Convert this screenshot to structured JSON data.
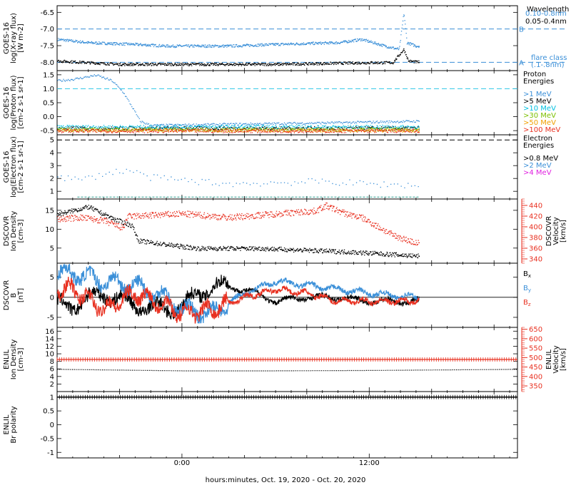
{
  "figure": {
    "xlabel": "hours:minutes, Oct. 19, 2020 - Oct. 20, 2020",
    "x_ticks": [
      "0:00",
      "12:00"
    ],
    "x_range_hours": [
      -8,
      21.5
    ],
    "data_end_hour": 15.2
  },
  "chart_data": [
    {
      "type": "line",
      "ylabel": [
        "GOES-16",
        "log(X-ray flux)",
        "[W m-2]"
      ],
      "yticks": [
        -6.5,
        -7.0,
        -7.5,
        -8.0
      ],
      "ylim": [
        -8.25,
        -6.3
      ],
      "legend_title": "Wavelength",
      "series": [
        {
          "name": "0.10-0.8nm",
          "color": "#3a8fd8",
          "baseline": -7.45,
          "points": [
            [
              -8,
              -7.3
            ],
            [
              -6,
              -7.4
            ],
            [
              -3,
              -7.45
            ],
            [
              -1,
              -7.5
            ],
            [
              3,
              -7.5
            ],
            [
              6,
              -7.45
            ],
            [
              10,
              -7.4
            ],
            [
              11.5,
              -7.3
            ],
            [
              13,
              -7.5
            ],
            [
              13.9,
              -7.6
            ],
            [
              14.2,
              -6.5
            ],
            [
              14.4,
              -7.4
            ],
            [
              15,
              -7.5
            ]
          ]
        },
        {
          "name": "0.05-0.4nm",
          "color": "#000000",
          "baseline": -8.05,
          "points": [
            [
              -8,
              -7.95
            ],
            [
              -4,
              -8.05
            ],
            [
              0,
              -8.05
            ],
            [
              6,
              -8.05
            ],
            [
              12,
              -8.0
            ],
            [
              13.5,
              -8.0
            ],
            [
              14.2,
              -7.6
            ],
            [
              14.5,
              -7.95
            ],
            [
              15,
              -7.98
            ]
          ]
        }
      ],
      "thresholds": [
        {
          "value": -7.0,
          "label": "B",
          "color": "#3a8fd8"
        },
        {
          "value": -8.0,
          "label": "A",
          "color": "#3a8fd8"
        }
      ],
      "annotations": [
        "flare class",
        "(.1-.8nm)"
      ]
    },
    {
      "type": "scatter",
      "ylabel": [
        "GOES-16",
        "log(Proton flux)",
        "[cm-2 s-1 sr-1]"
      ],
      "yticks": [
        1.5,
        1.0,
        0.5,
        0.0,
        -0.5
      ],
      "ylim": [
        -0.65,
        1.65
      ],
      "legend_title": "Proton Energies",
      "series": [
        {
          "name": ">1 MeV",
          "color": "#3a8fd8",
          "points": [
            [
              -8,
              1.3
            ],
            [
              -7,
              1.35
            ],
            [
              -5.5,
              1.5
            ],
            [
              -4.5,
              1.3
            ],
            [
              -3.8,
              0.9
            ],
            [
              -3.2,
              0.35
            ],
            [
              -2.7,
              -0.15
            ],
            [
              -2,
              -0.3
            ],
            [
              4,
              -0.25
            ],
            [
              10,
              -0.2
            ],
            [
              15,
              -0.15
            ]
          ]
        },
        {
          "name": ">5 MeV",
          "color": "#000000",
          "baseline": -0.4
        },
        {
          "name": ">10 MeV",
          "color": "#00c0e0",
          "baseline": -0.35
        },
        {
          "name": ">30 MeV",
          "color": "#7cc000",
          "baseline": -0.45
        },
        {
          "name": ">50 MeV",
          "color": "#f0a000",
          "baseline": -0.48
        },
        {
          "name": ">100 MeV",
          "color": "#e83020",
          "baseline": -0.5
        }
      ],
      "thresholds": [
        {
          "value": 1.0,
          "color": "#2fc8e8"
        }
      ]
    },
    {
      "type": "scatter",
      "ylabel": [
        "GOES-16",
        "log(Electron flux)",
        "[cm-2 s-1 sr-1]"
      ],
      "yticks": [
        5,
        4,
        3,
        2,
        1
      ],
      "ylim": [
        0.4,
        5.4
      ],
      "legend_title": "Electron Energies",
      "series": [
        {
          "name": ">0.8 MeV",
          "color": "#000000",
          "points": []
        },
        {
          "name": ">2 MeV",
          "color": "#3a8fd8",
          "points": [
            [
              -7.6,
              2.1
            ],
            [
              -6.5,
              1.9
            ],
            [
              -5,
              2.4
            ],
            [
              -3.5,
              2.7
            ],
            [
              -2,
              2.1
            ],
            [
              0,
              1.9
            ],
            [
              3,
              1.6
            ],
            [
              6,
              1.7
            ],
            [
              9,
              1.8
            ],
            [
              12,
              1.6
            ],
            [
              15,
              1.5
            ]
          ]
        },
        {
          "name": ">4 MeV",
          "color": "#e020e0",
          "points": []
        }
      ],
      "floor": {
        "value": 0.55,
        "color": "#2a9d8f"
      },
      "thresholds": [
        {
          "value": 5.0,
          "color": "#000000"
        }
      ]
    },
    {
      "type": "scatter",
      "ylabel": [
        "DSCOVR",
        "Ion Density",
        "[cm-3]"
      ],
      "yticks": [
        15,
        10,
        5
      ],
      "ylim": [
        1,
        18
      ],
      "y2label": [
        "DSCOVR",
        "Velocity",
        "[km/s]"
      ],
      "y2ticks": [
        440,
        420,
        400,
        380,
        360,
        340
      ],
      "y2lim": [
        332,
        452
      ],
      "series": [
        {
          "name": "Ion Density",
          "color": "#000000",
          "axis": "left",
          "points": [
            [
              -8,
              14
            ],
            [
              -6,
              16
            ],
            [
              -4.5,
              13
            ],
            [
              -3.2,
              11
            ],
            [
              -2.8,
              7
            ],
            [
              -1,
              6
            ],
            [
              1,
              5
            ],
            [
              5,
              5
            ],
            [
              8,
              4.5
            ],
            [
              11,
              4
            ],
            [
              13,
              3.5
            ],
            [
              15,
              3
            ]
          ]
        },
        {
          "name": "Velocity",
          "color": "#e83020",
          "axis": "right",
          "points": [
            [
              -8,
              415
            ],
            [
              -6.5,
              418
            ],
            [
              -5,
              412
            ],
            [
              -3.8,
              398
            ],
            [
              -3.5,
              420
            ],
            [
              0,
              425
            ],
            [
              3,
              418
            ],
            [
              6,
              425
            ],
            [
              8.5,
              430
            ],
            [
              9.2,
              440
            ],
            [
              10.5,
              425
            ],
            [
              11.5,
              418
            ],
            [
              12.3,
              405
            ],
            [
              13.5,
              385
            ],
            [
              15,
              370
            ]
          ]
        }
      ]
    },
    {
      "type": "scatter",
      "ylabel": [
        "DSCOVR",
        "B",
        "[nT]"
      ],
      "yticks": [
        5,
        0,
        -5
      ],
      "ylim": [
        -7.5,
        8.5
      ],
      "legend": [
        "Bx",
        "By",
        "Bz"
      ],
      "series": [
        {
          "name": "Bx",
          "color": "#000000",
          "points": [
            [
              -7,
              -2
            ],
            [
              -5,
              1
            ],
            [
              -3,
              -2
            ],
            [
              -1,
              -3
            ],
            [
              0,
              -2
            ],
            [
              2,
              3
            ],
            [
              4,
              2
            ],
            [
              6,
              -1
            ],
            [
              8,
              0
            ],
            [
              10,
              0
            ],
            [
              12,
              -1
            ],
            [
              15,
              -1
            ]
          ]
        },
        {
          "name": "By",
          "color": "#3a8fd8",
          "points": [
            [
              -7,
              6
            ],
            [
              -5,
              4
            ],
            [
              -3,
              3
            ],
            [
              -1,
              0
            ],
            [
              0,
              -3
            ],
            [
              2,
              -4
            ],
            [
              4,
              1
            ],
            [
              6,
              4
            ],
            [
              8,
              3
            ],
            [
              10,
              2
            ],
            [
              12,
              1
            ],
            [
              15,
              0
            ]
          ]
        },
        {
          "name": "Bz",
          "color": "#e83020",
          "points": [
            [
              -7,
              2
            ],
            [
              -5,
              -3
            ],
            [
              -3,
              1
            ],
            [
              -1,
              -2
            ],
            [
              0,
              -4
            ],
            [
              2,
              -3
            ],
            [
              4,
              0
            ],
            [
              6,
              2
            ],
            [
              8,
              1
            ],
            [
              10,
              -1
            ],
            [
              12,
              -1
            ],
            [
              15,
              -1
            ]
          ]
        }
      ],
      "zero_line": true
    },
    {
      "type": "line",
      "ylabel": [
        "ENLIL",
        "Ion Density",
        "[cm-3]"
      ],
      "yticks": [
        16,
        14,
        12,
        10,
        8,
        6,
        4,
        2
      ],
      "ylim": [
        0,
        17
      ],
      "y2label": [
        "ENLIL",
        "Velocity",
        "[km/s]"
      ],
      "y2ticks": [
        650,
        600,
        550,
        500,
        450,
        400,
        350
      ],
      "y2lim": [
        320,
        660
      ],
      "series": [
        {
          "name": "Ion Density",
          "color": "#000000",
          "axis": "left",
          "points": [
            [
              -8,
              6
            ],
            [
              0,
              5.6
            ],
            [
              6,
              5.6
            ],
            [
              12,
              5.7
            ],
            [
              21.5,
              6
            ]
          ]
        },
        {
          "name": "Velocity",
          "color": "#e83020",
          "axis": "right",
          "points": [
            [
              -8,
              490
            ],
            [
              21.5,
              490
            ]
          ]
        }
      ]
    },
    {
      "type": "line",
      "ylabel": [
        "ENLIL",
        "Br polarity"
      ],
      "yticks": [
        1.0,
        0.5,
        0.0,
        -0.5,
        -1.0
      ],
      "ylim": [
        -1.2,
        1.2
      ],
      "series": [
        {
          "name": "Br polarity",
          "color": "#000000",
          "points": [
            [
              -8,
              1.0
            ],
            [
              21.5,
              1.0
            ]
          ]
        }
      ]
    }
  ]
}
